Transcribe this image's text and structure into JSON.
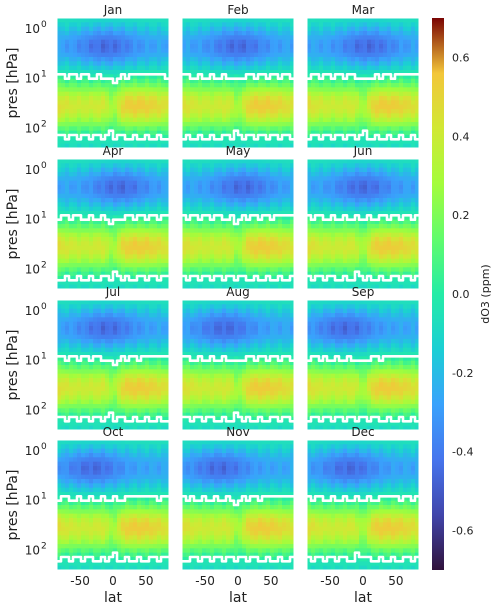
{
  "chart_data": {
    "type": "heatmap",
    "layout": "4x3 small multiples",
    "panels": [
      "Jan",
      "Feb",
      "Mar",
      "Apr",
      "May",
      "Jun",
      "Jul",
      "Aug",
      "Sep",
      "Oct",
      "Nov",
      "Dec"
    ],
    "xlabel": "lat",
    "ylabel": "pres [hPa]",
    "x_ticks": [
      -50,
      0,
      50
    ],
    "xlim": [
      -85,
      85
    ],
    "y_scale": "log",
    "y_inverted": true,
    "y_ticks": [
      {
        "base": "10",
        "exp": "0",
        "value": 1
      },
      {
        "base": "10",
        "exp": "1",
        "value": 10
      },
      {
        "base": "10",
        "exp": "2",
        "value": 100
      }
    ],
    "ylim": [
      0.6,
      250
    ],
    "colorbar": {
      "label": "dO3 (ppm)",
      "colormap": "turbo",
      "range": [
        -0.7,
        0.7
      ],
      "ticks": [
        "-0.6",
        "-0.4",
        "-0.2",
        "0.0",
        "0.2",
        "0.4",
        "0.6"
      ],
      "tick_values": [
        -0.6,
        -0.4,
        -0.2,
        0.0,
        0.2,
        0.4,
        0.6
      ]
    },
    "contour": {
      "color": "#ffffff",
      "level": 0.0
    },
    "grid": false,
    "field_description_values": {
      "upper_negative_peak": -0.45,
      "mid_positive_peak": 0.55,
      "lower_level": -0.1
    }
  }
}
